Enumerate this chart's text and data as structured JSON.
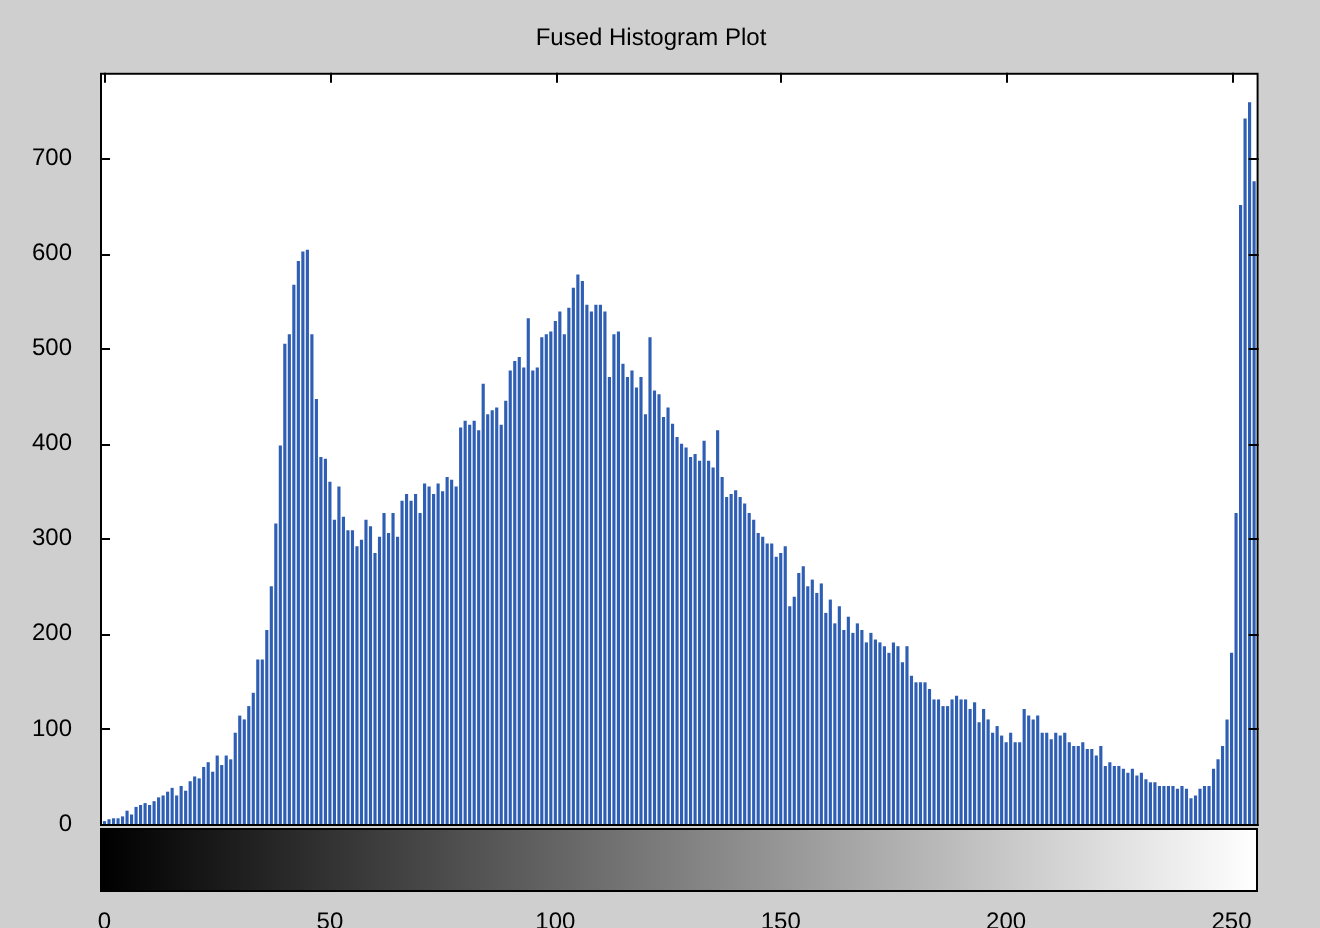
{
  "chart_data": {
    "type": "histogram",
    "title": "Fused Histogram Plot",
    "bins": [
      -0.5,
      0.5,
      1.5,
      2.5,
      3.5,
      4.5,
      5.5,
      6.5,
      7.5,
      8.5,
      9.5,
      10.5,
      11.5,
      12.5,
      13.5,
      14.5,
      15.5,
      16.5,
      17.5,
      18.5,
      19.5,
      20.5,
      21.5,
      22.5,
      23.5,
      24.5,
      25.5,
      26.5,
      27.5,
      28.5,
      29.5,
      30.5,
      31.5,
      32.5,
      33.5,
      34.5,
      35.5,
      36.5,
      37.5,
      38.5,
      39.5,
      40.5,
      41.5,
      42.5,
      43.5,
      44.5,
      45.5,
      46.5,
      47.5,
      48.5,
      49.5,
      50.5,
      51.5,
      52.5,
      53.5,
      54.5,
      55.5,
      56.5,
      57.5,
      58.5,
      59.5,
      60.5,
      61.5,
      62.5,
      63.5,
      64.5,
      65.5,
      66.5,
      67.5,
      68.5,
      69.5,
      70.5,
      71.5,
      72.5,
      73.5,
      74.5,
      75.5,
      76.5,
      77.5,
      78.5,
      79.5,
      80.5,
      81.5,
      82.5,
      83.5,
      84.5,
      85.5,
      86.5,
      87.5,
      88.5,
      89.5,
      90.5,
      91.5,
      92.5,
      93.5,
      94.5,
      95.5,
      96.5,
      97.5,
      98.5,
      99.5,
      100.5,
      101.5,
      102.5,
      103.5,
      104.5,
      105.5,
      106.5,
      107.5,
      108.5,
      109.5,
      110.5,
      111.5,
      112.5,
      113.5,
      114.5,
      115.5,
      116.5,
      117.5,
      118.5,
      119.5,
      120.5,
      121.5,
      122.5,
      123.5,
      124.5,
      125.5,
      126.5,
      127.5,
      128.5,
      129.5,
      130.5,
      131.5,
      132.5,
      133.5,
      134.5,
      135.5,
      136.5,
      137.5,
      138.5,
      139.5,
      140.5,
      141.5,
      142.5,
      143.5,
      144.5,
      145.5,
      146.5,
      147.5,
      148.5,
      149.5,
      150.5,
      151.5,
      152.5,
      153.5,
      154.5,
      155.5,
      156.5,
      157.5,
      158.5,
      159.5,
      160.5,
      161.5,
      162.5,
      163.5,
      164.5,
      165.5,
      166.5,
      167.5,
      168.5,
      169.5,
      170.5,
      171.5,
      172.5,
      173.5,
      174.5,
      175.5,
      176.5,
      177.5,
      178.5,
      179.5,
      180.5,
      181.5,
      182.5,
      183.5,
      184.5,
      185.5,
      186.5,
      187.5,
      188.5,
      189.5,
      190.5,
      191.5,
      192.5,
      193.5,
      194.5,
      195.5,
      196.5,
      197.5,
      198.5,
      199.5,
      200.5,
      201.5,
      202.5,
      203.5,
      204.5,
      205.5,
      206.5,
      207.5,
      208.5,
      209.5,
      210.5,
      211.5,
      212.5,
      213.5,
      214.5,
      215.5,
      216.5,
      217.5,
      218.5,
      219.5,
      220.5,
      221.5,
      222.5,
      223.5,
      224.5,
      225.5,
      226.5,
      227.5,
      228.5,
      229.5,
      230.5,
      231.5,
      232.5,
      233.5,
      234.5,
      235.5,
      236.5,
      237.5,
      238.5,
      239.5,
      240.5,
      241.5,
      242.5,
      243.5,
      244.5,
      245.5,
      246.5,
      247.5,
      248.5,
      249.5,
      250.5,
      251.5,
      252.5,
      253.5,
      254.5,
      255.5
    ],
    "values": [
      3,
      5,
      6,
      6,
      8,
      14,
      10,
      18,
      20,
      22,
      20,
      24,
      28,
      30,
      34,
      38,
      30,
      40,
      35,
      45,
      50,
      48,
      60,
      65,
      55,
      72,
      62,
      72,
      68,
      96,
      114,
      110,
      124,
      138,
      173,
      173,
      204,
      250,
      316,
      398,
      505,
      515,
      567,
      592,
      602,
      604,
      515,
      447,
      386,
      384,
      360,
      320,
      355,
      323,
      309,
      309,
      292,
      299,
      320,
      313,
      285,
      302,
      327,
      306,
      327,
      302,
      340,
      347,
      340,
      347,
      327,
      358,
      355,
      347,
      358,
      350,
      365,
      362,
      355,
      417,
      424,
      420,
      424,
      414,
      463,
      431,
      435,
      438,
      420,
      445,
      477,
      487,
      491,
      480,
      532,
      477,
      480,
      512,
      515,
      518,
      529,
      539,
      515,
      543,
      564,
      578,
      571,
      546,
      539,
      546,
      546,
      539,
      470,
      515,
      518,
      484,
      470,
      477,
      459,
      470,
      431,
      512,
      456,
      452,
      428,
      438,
      421,
      407,
      400,
      396,
      386,
      389,
      382,
      403,
      382,
      375,
      414,
      365,
      344,
      347,
      351,
      344,
      337,
      327,
      320,
      306,
      302,
      295,
      295,
      281,
      285,
      292,
      229,
      239,
      264,
      271,
      250,
      257,
      243,
      253,
      222,
      236,
      211,
      229,
      204,
      218,
      201,
      211,
      204,
      191,
      201,
      194,
      191,
      187,
      180,
      191,
      187,
      170,
      187,
      156,
      149,
      149,
      149,
      142,
      131,
      131,
      124,
      124,
      131,
      135,
      131,
      131,
      121,
      128,
      107,
      121,
      110,
      96,
      103,
      93,
      86,
      96,
      86,
      86,
      121,
      114,
      110,
      114,
      96,
      96,
      89,
      96,
      93,
      96,
      86,
      82,
      82,
      86,
      79,
      79,
      72,
      82,
      61,
      65,
      61,
      61,
      58,
      54,
      58,
      51,
      54,
      47,
      44,
      44,
      40,
      40,
      40,
      40,
      37,
      40,
      37,
      27,
      30,
      37,
      40,
      40,
      58,
      68,
      82,
      110,
      180,
      327,
      651,
      742,
      759,
      676
    ],
    "color": "#2f5fb4",
    "xlim": [
      -1,
      256
    ],
    "ylim": [
      0,
      790
    ],
    "xticks": [
      0,
      50,
      100,
      150,
      200,
      250
    ],
    "yticks": [
      0,
      100,
      200,
      300,
      400,
      500,
      600,
      700
    ]
  }
}
